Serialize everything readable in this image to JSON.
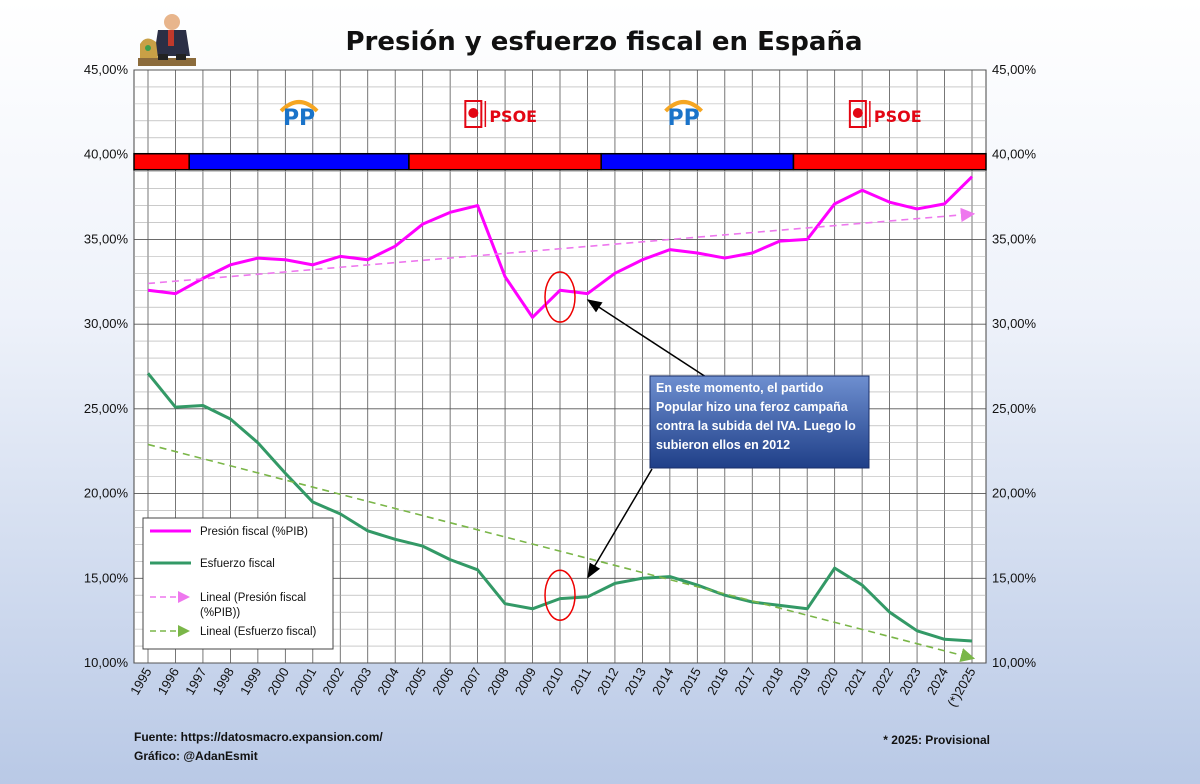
{
  "chart_data": {
    "type": "line",
    "title": "Presión y esfuerzo fiscal en España",
    "x": [
      "1995",
      "1996",
      "1997",
      "1998",
      "1999",
      "2000",
      "2001",
      "2002",
      "2003",
      "2004",
      "2005",
      "2006",
      "2007",
      "2008",
      "2009",
      "2010",
      "2011",
      "2012",
      "2013",
      "2014",
      "2015",
      "2016",
      "2017",
      "2018",
      "2019",
      "2020",
      "2021",
      "2022",
      "2023",
      "2024",
      "(*)2025"
    ],
    "ylim": [
      10,
      45
    ],
    "yticks": [
      "10,00%",
      "15,00%",
      "20,00%",
      "25,00%",
      "30,00%",
      "35,00%",
      "40,00%",
      "45,00%"
    ],
    "yticks_values": [
      10,
      15,
      20,
      25,
      30,
      35,
      40,
      45
    ],
    "grid": true,
    "legend_position": "bottom-left",
    "series": [
      {
        "name": "Presión fiscal (%PIB)",
        "color": "#ff00ff",
        "style": "solid",
        "values": [
          32.0,
          31.8,
          32.7,
          33.5,
          33.9,
          33.8,
          33.5,
          34.0,
          33.8,
          34.6,
          35.9,
          36.6,
          37.0,
          32.8,
          30.4,
          32.0,
          31.8,
          33.0,
          33.8,
          34.4,
          34.2,
          33.9,
          34.2,
          34.9,
          35.0,
          37.1,
          37.9,
          37.2,
          36.8,
          37.1,
          38.7
        ]
      },
      {
        "name": "Esfuerzo fiscal",
        "color": "#339966",
        "style": "solid",
        "values": [
          27.1,
          25.1,
          25.2,
          24.4,
          23.0,
          21.2,
          19.5,
          18.8,
          17.8,
          17.3,
          16.9,
          16.1,
          15.5,
          13.5,
          13.2,
          13.8,
          13.9,
          14.7,
          15.0,
          15.1,
          14.6,
          14.0,
          13.6,
          13.4,
          13.2,
          15.6,
          14.6,
          13.0,
          11.9,
          11.4,
          11.3
        ]
      },
      {
        "name": "Lineal (Presión fiscal (%PIB))",
        "color": "#ee77ee",
        "style": "dashed",
        "start": 32.4,
        "end": 36.5
      },
      {
        "name": "Lineal (Esfuerzo fiscal)",
        "color": "#7ab648",
        "style": "dashed",
        "start": 22.9,
        "end": 10.3
      }
    ],
    "legend_entries": [
      "Presión fiscal (%PIB)",
      "Esfuerzo fiscal",
      "Lineal (Presión fiscal",
      "(%PIB))",
      "Lineal (Esfuerzo fiscal)"
    ],
    "government_bands": [
      {
        "party": "PSOE",
        "from": 0,
        "to": 1.5,
        "color": "#ff0000"
      },
      {
        "party": "PP",
        "from": 1.5,
        "to": 9.5,
        "color": "#0000ff"
      },
      {
        "party": "PSOE",
        "from": 9.5,
        "to": 16.5,
        "color": "#ff0000"
      },
      {
        "party": "PP",
        "from": 16.5,
        "to": 23.5,
        "color": "#0000ff"
      },
      {
        "party": "PSOE",
        "from": 23.5,
        "to": 30,
        "color": "#ff0000"
      }
    ],
    "party_logos": [
      {
        "text": "PP",
        "at": 5.5,
        "color": "#1a73c9"
      },
      {
        "text": "PSOE",
        "at": 12.5,
        "color": "#e30613"
      },
      {
        "text": "PP",
        "at": 19.5,
        "color": "#1a73c9"
      },
      {
        "text": "PSOE",
        "at": 26.5,
        "color": "#e30613"
      }
    ],
    "annotation": {
      "lines": [
        "En este momento, el partido",
        "Popular hizo una feroz campaña",
        "contra la subida del IVA. Luego lo",
        "subieron ellos en 2012"
      ],
      "circle_presion": {
        "x": 15,
        "y": 31.6
      },
      "circle_esfuerzo": {
        "x": 15,
        "y": 14.0
      }
    }
  },
  "notes": {
    "source": "Fuente: https://datosmacro.expansion.com/",
    "author": "Gráfico: @AdanEsmit",
    "provisional": "* 2025: Provisional"
  },
  "icon": "businessman-with-money-bag-icon"
}
